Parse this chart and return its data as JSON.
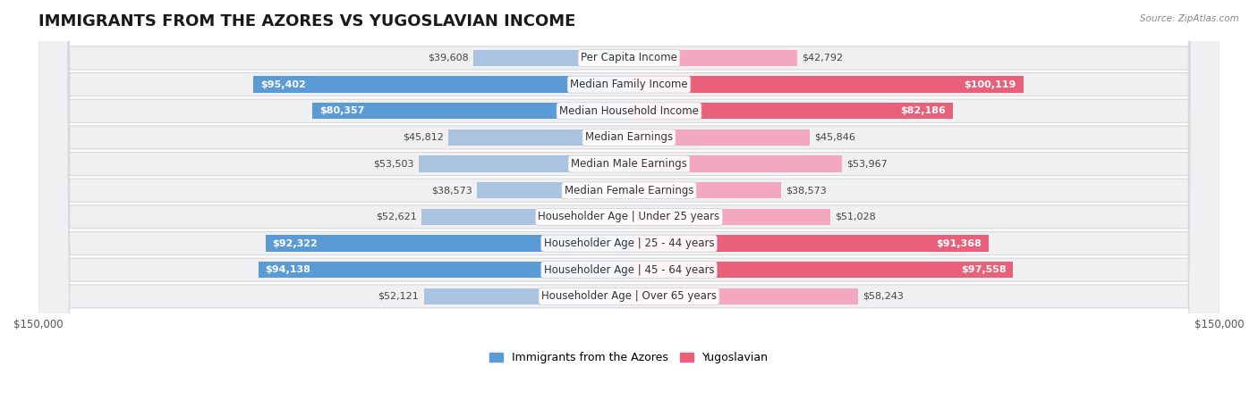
{
  "title": "IMMIGRANTS FROM THE AZORES VS YUGOSLAVIAN INCOME",
  "source": "Source: ZipAtlas.com",
  "categories": [
    "Per Capita Income",
    "Median Family Income",
    "Median Household Income",
    "Median Earnings",
    "Median Male Earnings",
    "Median Female Earnings",
    "Householder Age | Under 25 years",
    "Householder Age | 25 - 44 years",
    "Householder Age | 45 - 64 years",
    "Householder Age | Over 65 years"
  ],
  "azores_values": [
    39608,
    95402,
    80357,
    45812,
    53503,
    38573,
    52621,
    92322,
    94138,
    52121
  ],
  "yugoslav_values": [
    42792,
    100119,
    82186,
    45846,
    53967,
    38573,
    51028,
    91368,
    97558,
    58243
  ],
  "azores_labels": [
    "$39,608",
    "$95,402",
    "$80,357",
    "$45,812",
    "$53,503",
    "$38,573",
    "$52,621",
    "$92,322",
    "$94,138",
    "$52,121"
  ],
  "yugoslav_labels": [
    "$42,792",
    "$100,119",
    "$82,186",
    "$45,846",
    "$53,967",
    "$38,573",
    "$51,028",
    "$91,368",
    "$97,558",
    "$58,243"
  ],
  "azores_color_light": "#aac4e0",
  "azores_color_dark": "#5b9bd5",
  "yugoslav_color_light": "#f4a8c0",
  "yugoslav_color_dark": "#e8607a",
  "row_bg": "#f0f0f2",
  "row_border": "#d8d8dc",
  "max_val": 150000,
  "bar_height": 0.62,
  "title_fontsize": 13,
  "label_fontsize": 8.5,
  "value_fontsize": 8.0,
  "axis_label_fontsize": 8.5,
  "legend_fontsize": 9,
  "inside_label_threshold": 60000
}
